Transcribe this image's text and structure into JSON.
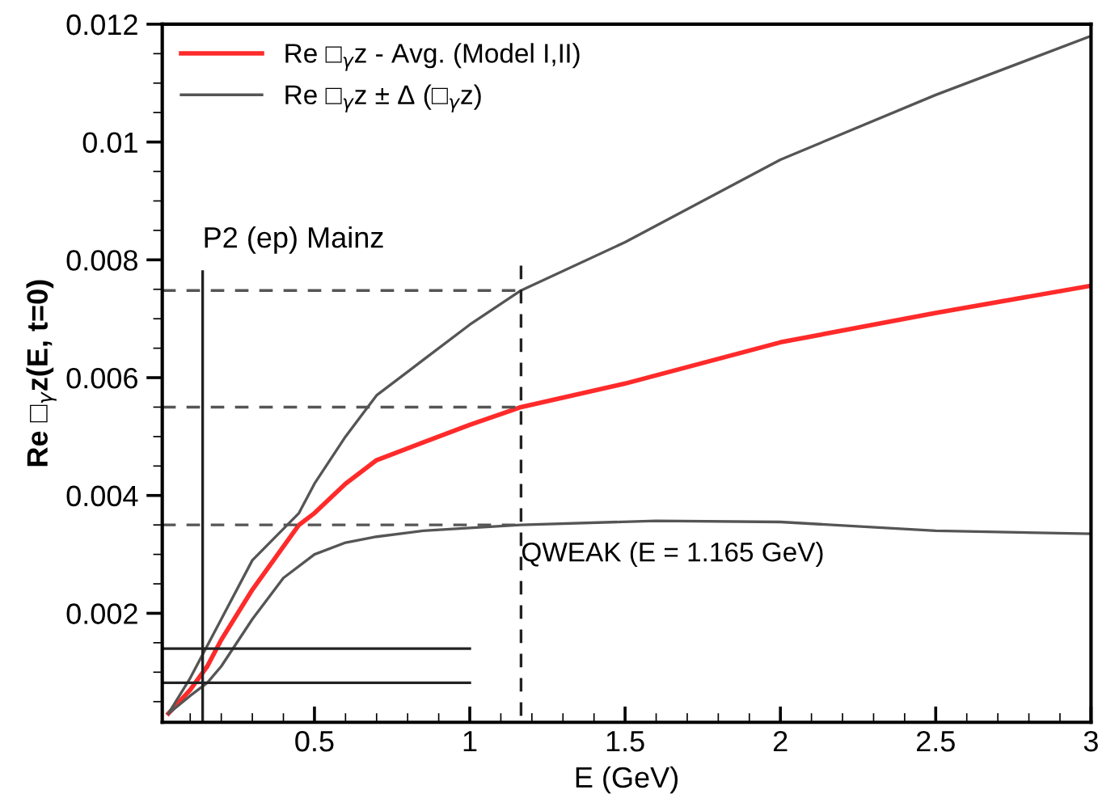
{
  "chart_data": {
    "type": "line",
    "xlabel": "E (GeV)",
    "ylabel": "Re □$_{γ}$z(E, t=0)",
    "xlim": [
      0.01,
      3
    ],
    "ylim": [
      0.00015,
      0.012
    ],
    "xticks": [
      0.5,
      1,
      1.5,
      2,
      2.5,
      3
    ],
    "yticks": [
      0.002,
      0.004,
      0.006,
      0.008,
      0.01,
      0.012
    ],
    "legend": "top left",
    "grid": false,
    "marker": "none",
    "series": [
      {
        "name": "Re □$_{γ}$z - Avg. (Model I,II)",
        "color": "#ff2a2a",
        "x": [
          0.03,
          0.1,
          0.155,
          0.2,
          0.3,
          0.45,
          0.5,
          0.6,
          0.7,
          0.85,
          1.0,
          1.165,
          1.5,
          2.0,
          2.5,
          3.0
        ],
        "values": [
          0.0003,
          0.0007,
          0.0011,
          0.00155,
          0.0024,
          0.0035,
          0.0037,
          0.0042,
          0.0046,
          0.0049,
          0.0052,
          0.0055,
          0.0059,
          0.0066,
          0.0071,
          0.00756
        ]
      },
      {
        "name": "Re □$_{γ}$z ± Δ (□$_{γ}$z)",
        "color": "#555555",
        "x": [
          0.03,
          0.1,
          0.155,
          0.2,
          0.3,
          0.45,
          0.5,
          0.6,
          0.7,
          0.85,
          1.0,
          1.165,
          1.5,
          2.0,
          2.5,
          3.0
        ],
        "values": [
          0.0003,
          0.0009,
          0.00145,
          0.0019,
          0.0029,
          0.0037,
          0.0042,
          0.005,
          0.0057,
          0.0063,
          0.0069,
          0.00748,
          0.0083,
          0.0097,
          0.0108,
          0.0118
        ]
      },
      {
        "color": "#555555",
        "x": [
          0.03,
          0.1,
          0.155,
          0.2,
          0.3,
          0.4,
          0.5,
          0.6,
          0.7,
          0.85,
          1.0,
          1.165,
          1.6,
          2.0,
          2.5,
          3.0
        ],
        "values": [
          0.0003,
          0.0006,
          0.00082,
          0.0011,
          0.0019,
          0.0026,
          0.003,
          0.0032,
          0.0033,
          0.0034,
          0.00345,
          0.0035,
          0.00357,
          0.00355,
          0.0034,
          0.00335
        ]
      },
      {
        "color": "#555555",
        "line_style": "dashed",
        "x": [
          0.01,
          1.165
        ],
        "values": [
          0.00748,
          0.00748
        ]
      },
      {
        "color": "#555555",
        "line_style": "dashed",
        "x": [
          0.01,
          1.165
        ],
        "values": [
          0.0055,
          0.0055
        ]
      },
      {
        "color": "#555555",
        "line_style": "dashed",
        "x": [
          0.01,
          1.165
        ],
        "values": [
          0.0035,
          0.0035
        ]
      },
      {
        "color": "#222222",
        "line_style": "dashed",
        "x": [
          1.165,
          1.165
        ],
        "values": [
          0.0079,
          0.00015
        ]
      },
      {
        "color": "#222222",
        "x": [
          0.14,
          0.14
        ],
        "values": [
          0.00015,
          0.0078
        ]
      },
      {
        "color": "#222222",
        "x": [
          0.01,
          1.0
        ],
        "values": [
          0.0014,
          0.0014
        ]
      },
      {
        "color": "#222222",
        "x": [
          0.01,
          1.0
        ],
        "values": [
          0.00082,
          0.00082
        ]
      }
    ],
    "annotations": [
      {
        "text": "P2 (ep) Mainz",
        "x": 0.14,
        "y": 0.0078
      },
      {
        "text": "QWEAK (E = 1.165 GeV)",
        "x": 1.165,
        "y": 0.003
      }
    ]
  }
}
